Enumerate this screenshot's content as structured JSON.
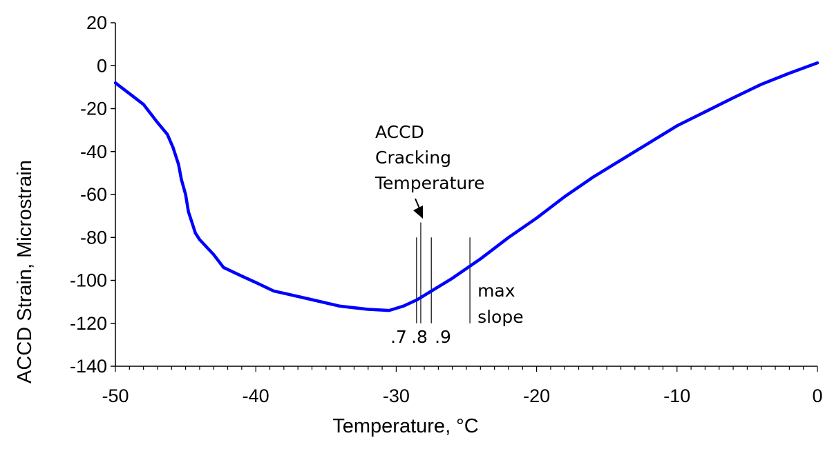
{
  "chart_data": {
    "type": "line",
    "title": "",
    "xlabel": "Temperature, °C",
    "ylabel": "ACCD Strain, Microstrain",
    "xlim": [
      -50,
      0
    ],
    "ylim": [
      -140,
      20
    ],
    "xticks": [
      -50,
      -40,
      -30,
      -20,
      -10,
      0
    ],
    "yticks": [
      20,
      0,
      -20,
      -40,
      -60,
      -80,
      -100,
      -120,
      -140
    ],
    "grid": false,
    "line_color": "#0000FF",
    "series": [
      {
        "x": [
          -50,
          -49,
          -48,
          -47,
          -46.3,
          -45.9,
          -45.5,
          -45.3,
          -45,
          -44.8,
          -44.5,
          -44.3,
          -44,
          -43,
          -42.3,
          -41,
          -40,
          -38.7,
          -38,
          -36,
          -34,
          -32,
          -30.5,
          -29.5,
          -28.5,
          -27.5,
          -26,
          -24,
          -22,
          -20,
          -18,
          -16,
          -14,
          -12,
          -10,
          -8,
          -6,
          -4,
          -2,
          0
        ],
        "y": [
          -8,
          -13,
          -18,
          -26.5,
          -32,
          -38,
          -46,
          -53,
          -60,
          -68,
          -74,
          -78,
          -81,
          -88,
          -94,
          -98,
          -101,
          -105,
          -106,
          -109,
          -112,
          -113.5,
          -114,
          -112,
          -109,
          -105,
          -99,
          -90,
          -80,
          -71,
          -61,
          -52,
          -44,
          -36,
          -28,
          -21.5,
          -15,
          -8.7,
          -3.5,
          1.3
        ]
      }
    ],
    "annotations": {
      "label_lines": [
        "ACCD",
        "Cracking",
        "Temperature"
      ],
      "markers": [
        {
          "label": ".7",
          "x": -28.55,
          "y_range": [
            -120,
            -80
          ]
        },
        {
          "label": ".8",
          "x": -28.25,
          "y_range": [
            -120,
            -73
          ]
        },
        {
          "label": ".9",
          "x": -27.5,
          "y_range": [
            -120,
            -80
          ]
        },
        {
          "label_lines": [
            "max",
            "slope"
          ],
          "x": -24.75,
          "y_range": [
            -120,
            -80
          ]
        }
      ]
    }
  }
}
